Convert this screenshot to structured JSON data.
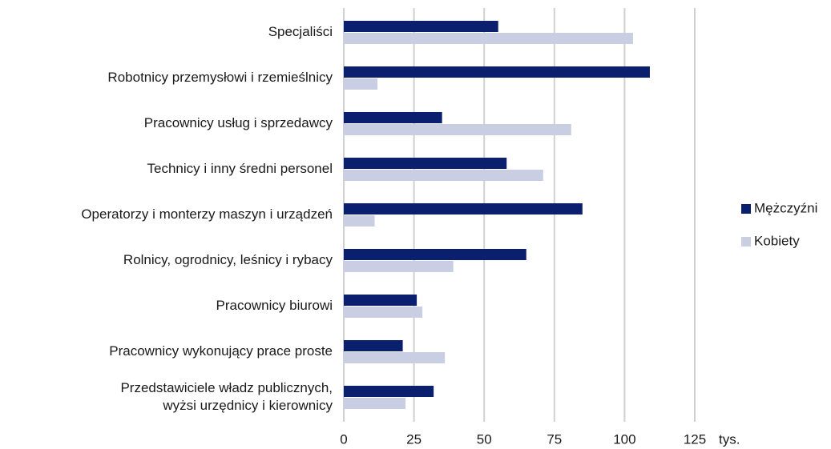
{
  "chart_data": {
    "type": "hbar",
    "categories": [
      "Specjaliści",
      "Robotnicy przemysłowi i rzemieślnicy",
      "Pracownicy usług i sprzedawcy",
      "Technicy i inny średni personel",
      "Operatorzy i monterzy maszyn i urządzeń",
      "Rolnicy, ogrodnicy, leśnicy i rybacy",
      "Pracownicy biurowi",
      "Pracownicy wykonujący prace proste",
      "Przedstawiciele władz publicznych,\nwyżsi urzędnicy i kierownicy"
    ],
    "series": [
      {
        "name": "Mężczyźni",
        "color": "#0b1f6f",
        "values": [
          55,
          109,
          35,
          58,
          85,
          65,
          26,
          21,
          32
        ]
      },
      {
        "name": "Kobiety",
        "color": "#c9cee3",
        "values": [
          103,
          12,
          81,
          71,
          11,
          39,
          28,
          36,
          22
        ]
      }
    ],
    "xlabel": "tys.",
    "xlim": [
      0,
      125
    ],
    "xticks": [
      0,
      25,
      50,
      75,
      100,
      125
    ],
    "grid": true,
    "legend": "right"
  }
}
